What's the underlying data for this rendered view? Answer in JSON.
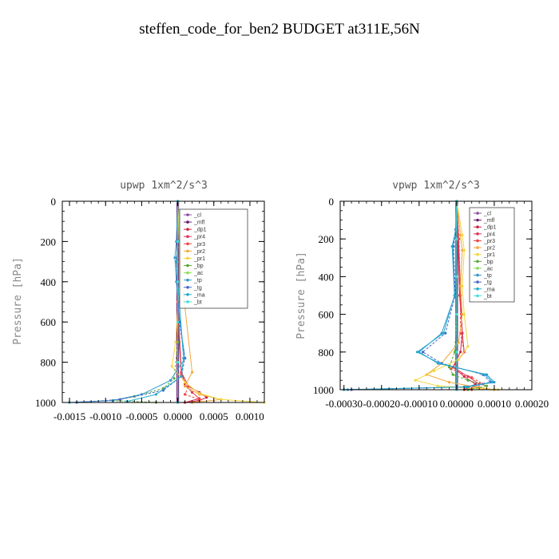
{
  "title": "steffen_code_for_ben2  BUDGET at311E,56N",
  "colors": {
    "cl": "#8a4f9e",
    "mfl": "#6a1a6e",
    "dp1": "#cc2244",
    "pr4": "#dd3355",
    "pr3": "#ee4444",
    "pr2": "#f4a83a",
    "pr1": "#f2d63a",
    "bp": "#55aa33",
    "ac": "#88dd55",
    "tp": "#3399cc",
    "tg": "#4466cc",
    "ma": "#22aacc",
    "bt": "#44dddd"
  },
  "chart_data": [
    {
      "type": "line",
      "title": "upwp  1xm^2/s^3",
      "xlabel": "",
      "ylabel": "Pressure [hPa]",
      "xlim": [
        -0.0016,
        0.0012
      ],
      "ylim": [
        1000,
        0
      ],
      "x_tick_labels": [
        "-0.0015",
        "-0.0010",
        "-0.0005",
        "0.0000",
        "0.0005",
        "0.0010"
      ],
      "x_ticks": [
        -0.0015,
        -0.001,
        -0.0005,
        0.0,
        0.0005,
        0.001
      ],
      "y_ticks": [
        0,
        200,
        400,
        600,
        800,
        1000
      ],
      "legend": [
        "_cl",
        "_mfl",
        "_dp1",
        "_pr4",
        "_pr3",
        "_pr2",
        "_pr1",
        "_bp",
        "_ac",
        "_tp",
        "_tg",
        "_ma",
        "_bt"
      ],
      "legend_placement": "top-right",
      "series": [
        {
          "name": "_cl",
          "color_key": "cl",
          "x": [
            0,
            0,
            0,
            0,
            0,
            0
          ],
          "y": [
            0,
            200,
            400,
            600,
            800,
            1000
          ]
        },
        {
          "name": "_mfl",
          "color_key": "mfl",
          "x": [
            0,
            0,
            0,
            0,
            0,
            0
          ],
          "y": [
            0,
            200,
            400,
            600,
            800,
            1000
          ]
        },
        {
          "name": "_dp1",
          "color_key": "dp1",
          "x": [
            0,
            0,
            2e-05,
            5e-05,
            0.00015,
            0.0003,
            0.0004,
            0.0003,
            0.0001
          ],
          "y": [
            0,
            400,
            700,
            850,
            920,
            950,
            975,
            990,
            1000
          ]
        },
        {
          "name": "_pr4",
          "color_key": "pr4",
          "x": [
            0,
            0,
            5e-05,
            0.0001,
            0.0002,
            0.0003,
            0.0001
          ],
          "y": [
            0,
            500,
            850,
            910,
            950,
            980,
            1000
          ]
        },
        {
          "name": "_pr3",
          "color_key": "pr3",
          "x": [
            0,
            0,
            5e-05,
            0.00015,
            0.0001,
            0.0003,
            0.0002
          ],
          "y": [
            0,
            500,
            860,
            920,
            960,
            985,
            1000
          ]
        },
        {
          "name": "_pr2",
          "color_key": "pr2",
          "x": [
            0,
            2e-05,
            3e-05,
            0.0002,
            0.0001,
            0.0003,
            0.0006,
            0.0002
          ],
          "y": [
            0,
            200,
            300,
            850,
            920,
            960,
            985,
            1000
          ]
        },
        {
          "name": "_pr1",
          "color_key": "pr1",
          "x": [
            0,
            3e-05,
            4e-05,
            -3e-05,
            -8e-05,
            0.0001,
            0.0003,
            0.0006,
            0.0012
          ],
          "y": [
            0,
            230,
            320,
            700,
            820,
            900,
            955,
            985,
            1000
          ]
        },
        {
          "name": "_bp",
          "color_key": "bp",
          "x": [
            0,
            0,
            -5e-05,
            -0.0002,
            -0.0006,
            -0.0009,
            -0.0003
          ],
          "y": [
            0,
            700,
            880,
            930,
            970,
            990,
            1000
          ]
        },
        {
          "name": "_ac",
          "color_key": "ac",
          "x": [
            0,
            0,
            0,
            0,
            0,
            0
          ],
          "y": [
            0,
            200,
            400,
            600,
            800,
            1000
          ]
        },
        {
          "name": "_tp",
          "color_key": "tp",
          "x": [
            0,
            -2e-05,
            -4e-05,
            -2e-05,
            3e-05,
            0.0001,
            -0.0001,
            -0.0005,
            -0.0009,
            -0.0015
          ],
          "y": [
            0,
            200,
            280,
            400,
            600,
            780,
            890,
            960,
            990,
            1000
          ]
        },
        {
          "name": "_tg",
          "color_key": "tg",
          "x": [
            0,
            0,
            -2e-05,
            2e-05,
            0.0001,
            5e-05,
            -0.0002,
            -0.0008,
            -0.0014
          ],
          "y": [
            0,
            200,
            300,
            600,
            780,
            870,
            940,
            985,
            1000
          ]
        },
        {
          "name": "_ma",
          "color_key": "ma",
          "x": [
            0,
            0,
            -2e-05,
            8e-05,
            5e-05,
            -0.0003,
            -0.0007
          ],
          "y": [
            0,
            200,
            300,
            780,
            870,
            960,
            995
          ]
        },
        {
          "name": "_bt",
          "color_key": "bt",
          "x": [
            0,
            0,
            0,
            0,
            0,
            0
          ],
          "y": [
            0,
            200,
            400,
            600,
            800,
            1000
          ]
        }
      ]
    },
    {
      "type": "line",
      "title": "vpwp  1xm^2/s^3",
      "xlabel": "",
      "ylabel": "Pressure [hPa]",
      "xlim": [
        -0.00031,
        0.0002
      ],
      "ylim": [
        1000,
        0
      ],
      "x_tick_labels": [
        "-0.00030",
        "-0.00020",
        "-0.00010",
        "0.00000",
        "0.00010",
        "0.00020"
      ],
      "x_ticks": [
        -0.0003,
        -0.0002,
        -0.0001,
        0.0,
        0.0001,
        0.0002
      ],
      "y_ticks": [
        0,
        200,
        400,
        600,
        800,
        1000
      ],
      "legend": [
        "_cl",
        "_mfl",
        "_dp1",
        "_pr4",
        "_pr3",
        "_pr2",
        "_pr1",
        "_bp",
        "_ac",
        "_tp",
        "_tg",
        "_ma",
        "_bt"
      ],
      "legend_placement": "top-right",
      "series": [
        {
          "name": "_cl",
          "color_key": "cl",
          "x": [
            0,
            0,
            0,
            0,
            0,
            0
          ],
          "y": [
            0,
            200,
            400,
            600,
            800,
            1000
          ]
        },
        {
          "name": "_mfl",
          "color_key": "mfl",
          "x": [
            0,
            0,
            0,
            0,
            0,
            0
          ],
          "y": [
            0,
            200,
            400,
            600,
            800,
            1000
          ]
        },
        {
          "name": "_dp1",
          "color_key": "dp1",
          "x": [
            0,
            3e-06,
            8e-06,
            1.5e-05,
            1e-05,
            -1e-05,
            2e-05,
            5e-05,
            2e-05
          ],
          "y": [
            0,
            200,
            500,
            700,
            800,
            880,
            930,
            970,
            1000
          ]
        },
        {
          "name": "_pr4",
          "color_key": "pr4",
          "x": [
            0,
            5e-06,
            1e-05,
            1.5e-05,
            2e-05,
            -1e-05,
            3e-05,
            6e-05,
            3e-05
          ],
          "y": [
            0,
            200,
            500,
            700,
            800,
            880,
            930,
            970,
            1000
          ]
        },
        {
          "name": "_pr3",
          "color_key": "pr3",
          "x": [
            0,
            6e-06,
            1e-05,
            1e-05,
            2e-05,
            -1.5e-05,
            4e-05,
            7e-05,
            4e-05
          ],
          "y": [
            0,
            200,
            500,
            700,
            800,
            890,
            935,
            970,
            1000
          ]
        },
        {
          "name": "_pr2",
          "color_key": "pr2",
          "x": [
            0,
            1e-05,
            1.5e-05,
            1e-05,
            1.5e-05,
            5e-06,
            -4e-05,
            -8e-05,
            -2e-05,
            5e-05,
            0.0001
          ],
          "y": [
            0,
            180,
            260,
            450,
            600,
            750,
            860,
            920,
            960,
            985,
            1000
          ]
        },
        {
          "name": "_pr1",
          "color_key": "pr1",
          "x": [
            0,
            1.5e-05,
            2e-05,
            1.5e-05,
            2e-05,
            3e-05,
            5e-06,
            -6e-05,
            -0.00011,
            -5e-05,
            6e-05,
            0.00011
          ],
          "y": [
            0,
            180,
            260,
            450,
            600,
            770,
            840,
            900,
            950,
            980,
            995,
            1000
          ]
        },
        {
          "name": "_bp",
          "color_key": "bp",
          "x": [
            0,
            0,
            -5e-06,
            -2e-05,
            -1e-05,
            3e-05,
            8e-05,
            3e-05
          ],
          "y": [
            0,
            600,
            800,
            880,
            920,
            950,
            980,
            1000
          ]
        },
        {
          "name": "_ac",
          "color_key": "ac",
          "x": [
            0,
            0,
            0,
            0,
            0,
            0
          ],
          "y": [
            0,
            200,
            400,
            600,
            800,
            1000
          ]
        },
        {
          "name": "_tp",
          "color_key": "tp",
          "x": [
            0,
            -3e-06,
            -1e-05,
            -5e-06,
            -4e-05,
            -0.0001,
            -5e-05,
            8e-05,
            0.0001,
            3e-05,
            -0.0003
          ],
          "y": [
            0,
            150,
            240,
            500,
            700,
            800,
            860,
            920,
            960,
            985,
            1000
          ]
        },
        {
          "name": "_tg",
          "color_key": "tg",
          "x": [
            0,
            -2e-06,
            -8e-06,
            -4e-06,
            -3e-05,
            -9e-05,
            -4e-05,
            7e-05,
            9e-05,
            2e-05,
            -0.00028
          ],
          "y": [
            0,
            150,
            240,
            500,
            700,
            800,
            860,
            920,
            960,
            985,
            1000
          ]
        },
        {
          "name": "_ma",
          "color_key": "ma",
          "x": [
            0,
            -2e-06,
            -1.2e-05,
            -6e-06,
            -3.5e-05,
            -0.000105,
            -4.5e-05,
            7.5e-05,
            9.5e-05,
            2.5e-05,
            -0.00029
          ],
          "y": [
            0,
            150,
            240,
            500,
            700,
            800,
            860,
            920,
            960,
            985,
            1000
          ]
        },
        {
          "name": "_bt",
          "color_key": "bt",
          "x": [
            0,
            0,
            0,
            0,
            0,
            0
          ],
          "y": [
            0,
            200,
            400,
            600,
            800,
            1000
          ]
        }
      ]
    }
  ]
}
